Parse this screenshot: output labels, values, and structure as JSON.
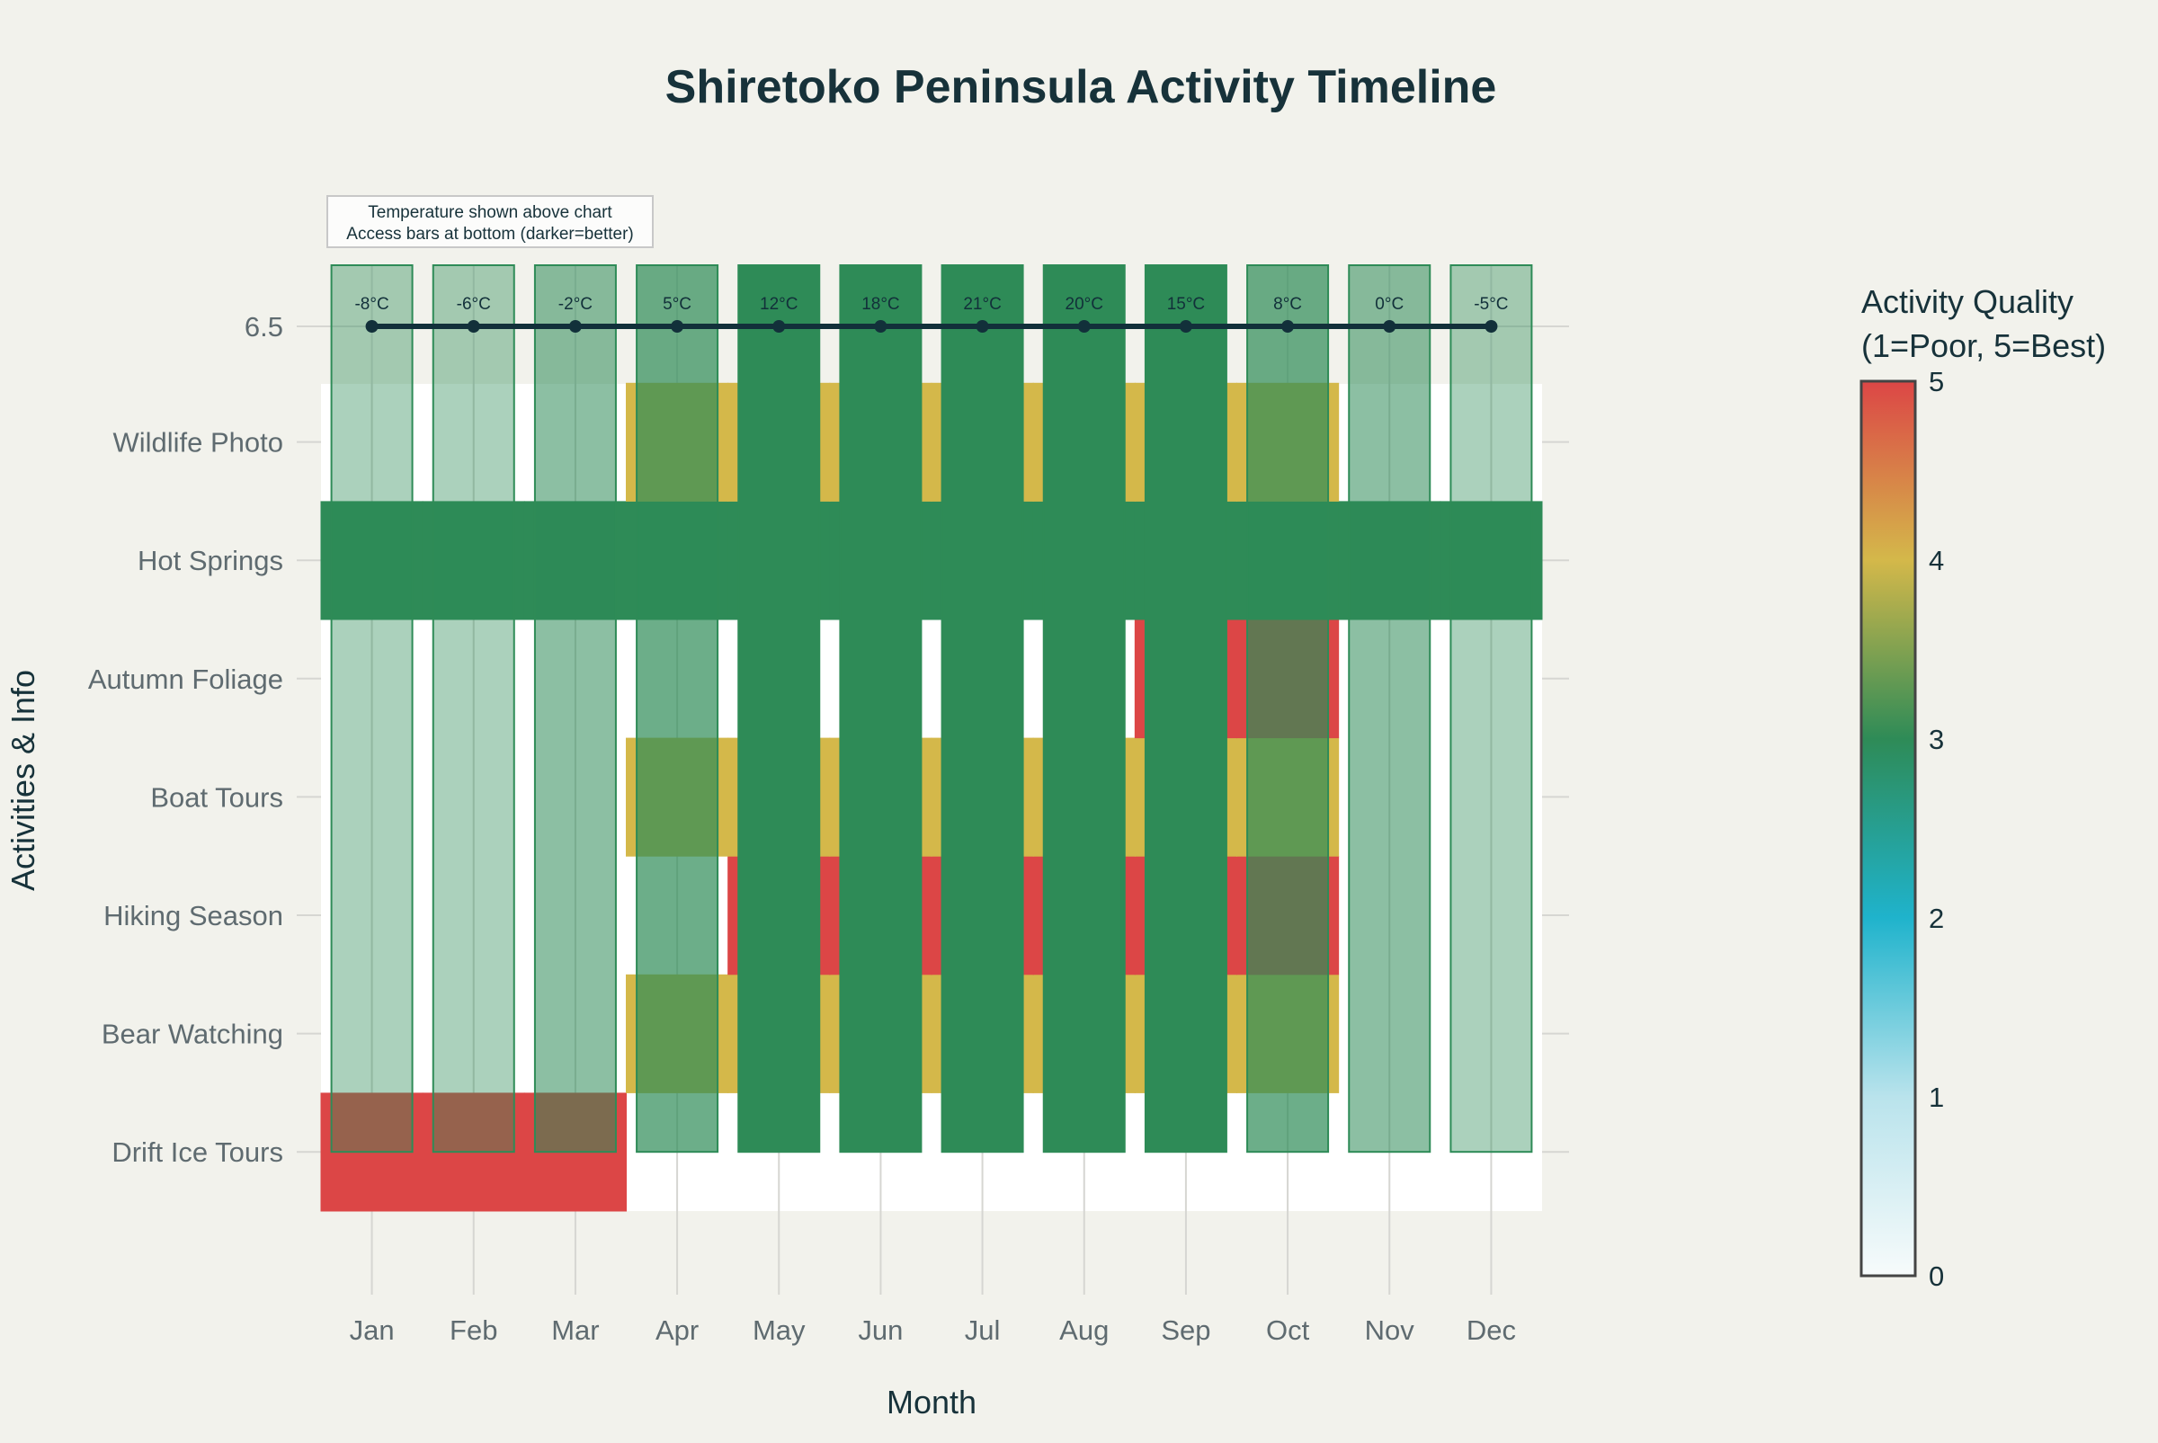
{
  "chart_data": {
    "type": "heatmap",
    "title": "Shiretoko Peninsula Activity Timeline",
    "xlabel": "Month",
    "ylabel": "Activities & Info",
    "categories": [
      "Jan",
      "Feb",
      "Mar",
      "Apr",
      "May",
      "Jun",
      "Jul",
      "Aug",
      "Sep",
      "Oct",
      "Nov",
      "Dec"
    ],
    "rows": [
      {
        "name": "Drift Ice Tours",
        "values": [
          5,
          5,
          5,
          null,
          null,
          null,
          null,
          null,
          null,
          null,
          null,
          null
        ]
      },
      {
        "name": "Bear Watching",
        "values": [
          null,
          null,
          null,
          4,
          4,
          4,
          4,
          4,
          4,
          4,
          null,
          null
        ]
      },
      {
        "name": "Hiking Season",
        "values": [
          null,
          null,
          null,
          null,
          5,
          5,
          5,
          5,
          5,
          5,
          null,
          null
        ]
      },
      {
        "name": "Boat Tours",
        "values": [
          null,
          null,
          null,
          4,
          4,
          4,
          4,
          4,
          4,
          4,
          null,
          null
        ]
      },
      {
        "name": "Autumn Foliage",
        "values": [
          null,
          null,
          null,
          null,
          null,
          null,
          null,
          null,
          5,
          5,
          null,
          null
        ]
      },
      {
        "name": "Hot Springs",
        "values": [
          3,
          3,
          3,
          3,
          3,
          3,
          3,
          3,
          3,
          3,
          3,
          3
        ]
      },
      {
        "name": "Wildlife Photo",
        "values": [
          null,
          null,
          null,
          4,
          4,
          4,
          4,
          4,
          4,
          4,
          null,
          null
        ]
      }
    ],
    "temperature_row_label": "6.5",
    "temperature": {
      "values": [
        -8,
        -6,
        -2,
        5,
        12,
        18,
        21,
        20,
        15,
        8,
        0,
        -5
      ],
      "labels": [
        "-8°C",
        "-6°C",
        "-2°C",
        "5°C",
        "12°C",
        "18°C",
        "21°C",
        "20°C",
        "15°C",
        "8°C",
        "0°C",
        "-5°C"
      ],
      "color": "#12303a"
    },
    "access": [
      1,
      1,
      2,
      3,
      5,
      5,
      5,
      5,
      5,
      3,
      2,
      1
    ],
    "access_color": "#2e8b57",
    "annotation": [
      "Temperature shown above chart",
      "Access bars at bottom (darker=better)"
    ],
    "colorbar": {
      "title_lines": [
        "Activity Quality",
        "(1=Poor, 5=Best)"
      ],
      "range": [
        0,
        5
      ],
      "ticks": [
        "0",
        "1",
        "2",
        "3",
        "4",
        "5"
      ],
      "stops": [
        {
          "v": 0,
          "color": "#f7fbfb"
        },
        {
          "v": 1,
          "color": "#b9e3ec"
        },
        {
          "v": 2,
          "color": "#1fb3cc"
        },
        {
          "v": 3,
          "color": "#2e8b57"
        },
        {
          "v": 4,
          "color": "#d4b84a"
        },
        {
          "v": 5,
          "color": "#dc4646"
        }
      ]
    },
    "grid": true
  }
}
